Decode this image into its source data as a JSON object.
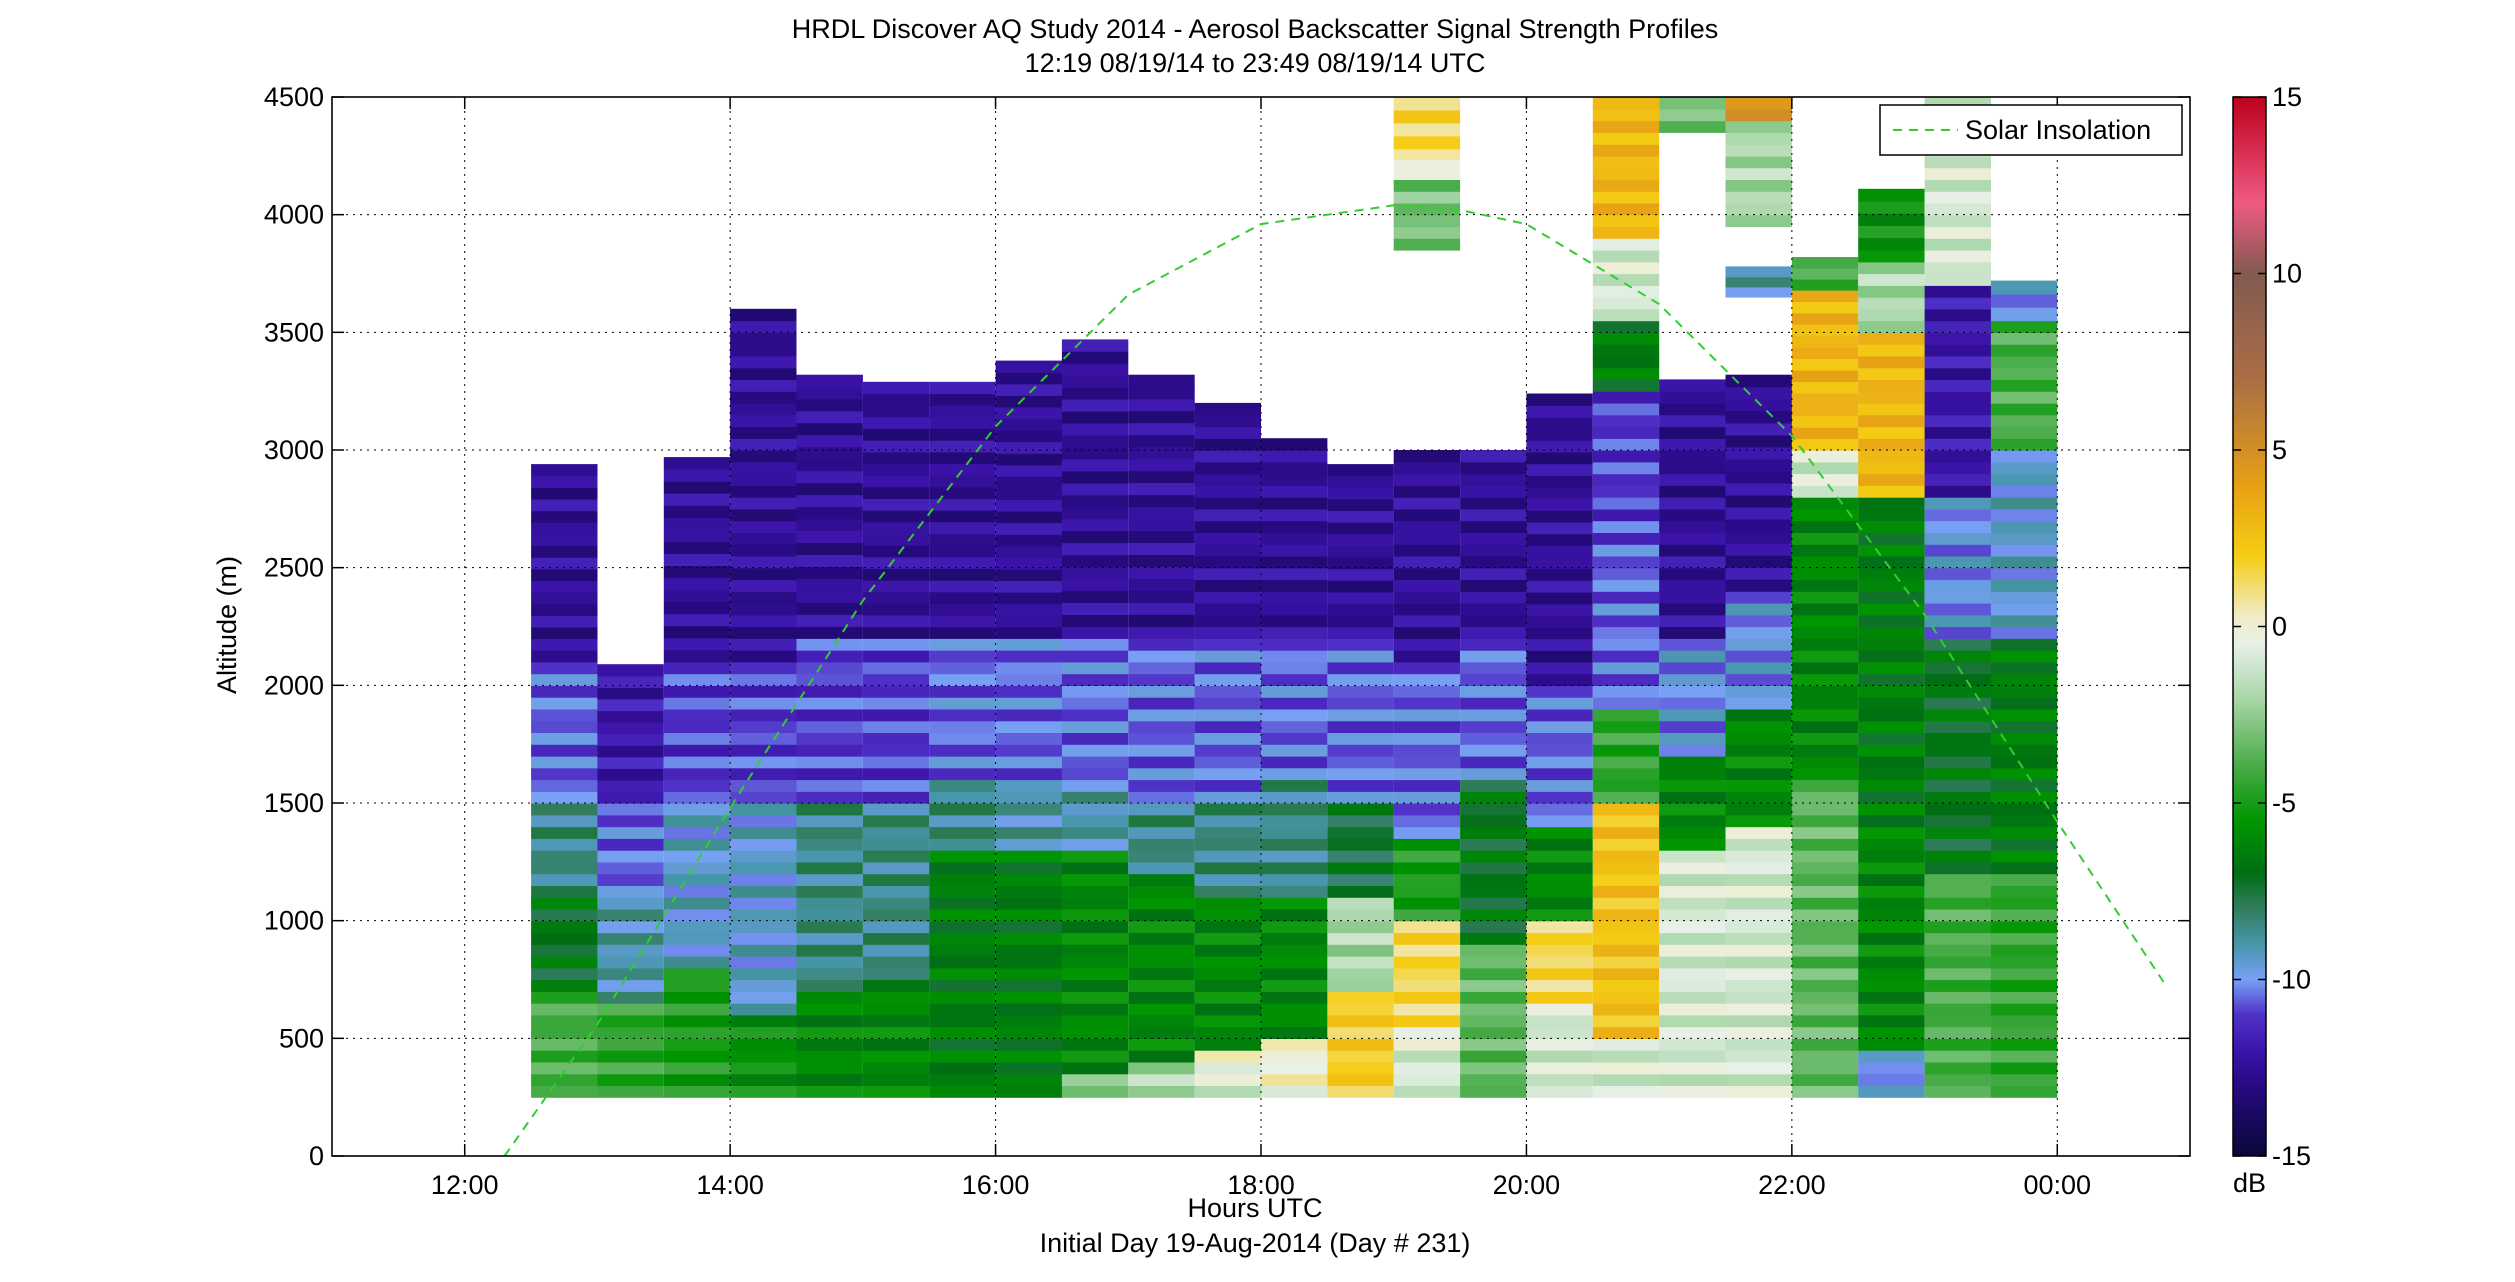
{
  "chart_data": {
    "type": "heatmap",
    "title": "HRDL Discover AQ Study 2014 - Aerosol Backscatter Signal Strength Profiles",
    "subtitle": "12:19 08/19/14 to 23:49 08/19/14  UTC",
    "xlabel": "Hours UTC",
    "xlabel2": "Initial Day 19-Aug-2014 (Day # 231)",
    "ylabel": "Altitude (m)",
    "x_unit": "hours UTC (continuous from 00:00 on 19-Aug-2014)",
    "xlim": [
      11,
      25
    ],
    "ylim": [
      0,
      4500
    ],
    "x_tick_values": [
      12,
      14,
      16,
      18,
      20,
      22,
      24
    ],
    "x_tick_labels": [
      "12:00",
      "14:00",
      "16:00",
      "18:00",
      "20:00",
      "22:00",
      "00:00"
    ],
    "y_tick_values": [
      0,
      500,
      1000,
      1500,
      2000,
      2500,
      3000,
      3500,
      4000,
      4500
    ],
    "y_tick_labels": [
      "0",
      "500",
      "1000",
      "1500",
      "2000",
      "2500",
      "3000",
      "3500",
      "4000",
      "4500"
    ],
    "grid": true,
    "legend": {
      "position": "top-right",
      "entries": [
        {
          "label": "Solar Insolation",
          "style": "dashed",
          "color": "#33cc33"
        }
      ]
    },
    "colorbar": {
      "label": "dB",
      "range": [
        -15,
        15
      ],
      "tick_values": [
        -15,
        -10,
        -5,
        0,
        5,
        10,
        15
      ],
      "tick_labels": [
        "-15",
        "-10",
        "-5",
        "0",
        "5",
        "10",
        "15"
      ]
    },
    "profile_width_hours": 0.5,
    "profiles": [
      {
        "t": 12.75,
        "segs": [
          [
            250,
            700,
            -4
          ],
          [
            700,
            1100,
            -7
          ],
          [
            1100,
            1500,
            -8.5
          ],
          [
            1500,
            2100,
            -10.5
          ],
          [
            2100,
            2940,
            -12.5
          ]
        ]
      },
      {
        "t": 13.25,
        "segs": [
          [
            250,
            650,
            -4.5
          ],
          [
            650,
            1100,
            -9
          ],
          [
            1100,
            1500,
            -10.5
          ],
          [
            1500,
            2090,
            -12
          ]
        ]
      },
      {
        "t": 13.75,
        "segs": [
          [
            250,
            800,
            -5
          ],
          [
            800,
            1500,
            -9.5
          ],
          [
            1500,
            2100,
            -11
          ],
          [
            2100,
            2970,
            -12.5
          ]
        ]
      },
      {
        "t": 14.25,
        "segs": [
          [
            250,
            600,
            -5.5
          ],
          [
            600,
            1500,
            -9.5
          ],
          [
            1500,
            2100,
            -11
          ],
          [
            2100,
            3600,
            -12.5
          ]
        ]
      },
      {
        "t": 14.75,
        "segs": [
          [
            250,
            700,
            -6
          ],
          [
            700,
            1500,
            -8.5
          ],
          [
            1500,
            2200,
            -11
          ],
          [
            2200,
            3320,
            -12.5
          ]
        ]
      },
      {
        "t": 15.25,
        "segs": [
          [
            250,
            750,
            -6
          ],
          [
            750,
            1500,
            -8.5
          ],
          [
            1500,
            2200,
            -11
          ],
          [
            2200,
            3290,
            -12.5
          ]
        ]
      },
      {
        "t": 15.75,
        "segs": [
          [
            250,
            1300,
            -6.5
          ],
          [
            1300,
            1600,
            -8.5
          ],
          [
            1600,
            2200,
            -10.5
          ],
          [
            2200,
            3290,
            -12.5
          ]
        ]
      },
      {
        "t": 16.25,
        "segs": [
          [
            250,
            1300,
            -6.5
          ],
          [
            1300,
            1600,
            -9
          ],
          [
            1600,
            2200,
            -10.5
          ],
          [
            2200,
            3380,
            -12.5
          ]
        ]
      },
      {
        "t": 16.75,
        "segs": [
          [
            250,
            350,
            -3
          ],
          [
            350,
            1300,
            -6
          ],
          [
            1300,
            1600,
            -9
          ],
          [
            1600,
            2200,
            -10.5
          ],
          [
            2200,
            3420,
            -12.5
          ],
          [
            3420,
            3470,
            -12.5
          ]
        ]
      },
      {
        "t": 17.25,
        "segs": [
          [
            250,
            400,
            -2
          ],
          [
            400,
            1200,
            -6
          ],
          [
            1200,
            1500,
            -8.5
          ],
          [
            1500,
            2200,
            -10.5
          ],
          [
            2200,
            3320,
            -12.5
          ]
        ]
      },
      {
        "t": 17.75,
        "segs": [
          [
            250,
            350,
            -1
          ],
          [
            350,
            450,
            0
          ],
          [
            450,
            1100,
            -6
          ],
          [
            1100,
            1500,
            -8.5
          ],
          [
            1500,
            2200,
            -10.5
          ],
          [
            2200,
            3200,
            -12.5
          ]
        ]
      },
      {
        "t": 18.25,
        "segs": [
          [
            250,
            500,
            0
          ],
          [
            500,
            1100,
            -6
          ],
          [
            1100,
            1600,
            -8.5
          ],
          [
            1600,
            2200,
            -10.5
          ],
          [
            2200,
            3050,
            -12.5
          ]
        ]
      },
      {
        "t": 18.75,
        "segs": [
          [
            250,
            700,
            2
          ],
          [
            700,
            1100,
            -2
          ],
          [
            1100,
            1500,
            -7.5
          ],
          [
            1500,
            2200,
            -10.5
          ],
          [
            2200,
            2940,
            -12.5
          ]
        ]
      },
      {
        "t": 19.25,
        "segs": [
          [
            250,
            450,
            -1
          ],
          [
            450,
            550,
            0
          ],
          [
            550,
            1000,
            1.5
          ],
          [
            1000,
            1350,
            -5
          ],
          [
            1350,
            2100,
            -10.5
          ],
          [
            2100,
            2950,
            -12.5
          ],
          [
            2950,
            3000,
            -12.5
          ],
          [
            3850,
            4150,
            -3
          ],
          [
            4150,
            4280,
            0
          ],
          [
            4280,
            4500,
            1.5
          ]
        ]
      },
      {
        "t": 19.75,
        "segs": [
          [
            250,
            900,
            -3.5
          ],
          [
            900,
            1600,
            -7
          ],
          [
            1600,
            2200,
            -10.5
          ],
          [
            2200,
            3000,
            -12.5
          ]
        ]
      },
      {
        "t": 20.25,
        "segs": [
          [
            250,
            650,
            -1
          ],
          [
            650,
            1000,
            1.5
          ],
          [
            1000,
            1400,
            -6
          ],
          [
            1400,
            2000,
            -10.5
          ],
          [
            2000,
            3240,
            -12.5
          ]
        ]
      },
      {
        "t": 20.75,
        "segs": [
          [
            250,
            500,
            -1
          ],
          [
            500,
            1500,
            2.5
          ],
          [
            1500,
            1900,
            -4.5
          ],
          [
            1900,
            2600,
            -10.5
          ],
          [
            2600,
            3250,
            -11
          ],
          [
            3250,
            3550,
            -6.5
          ],
          [
            3550,
            3900,
            -1
          ],
          [
            3900,
            4500,
            3
          ]
        ]
      },
      {
        "t": 21.25,
        "segs": [
          [
            250,
            600,
            -1
          ],
          [
            600,
            1300,
            -1
          ],
          [
            1300,
            1700,
            -6
          ],
          [
            1700,
            2200,
            -10
          ],
          [
            2200,
            3300,
            -12.5
          ],
          [
            4350,
            4500,
            -3
          ]
        ]
      },
      {
        "t": 21.75,
        "segs": [
          [
            250,
            1400,
            -1
          ],
          [
            1400,
            1900,
            -6
          ],
          [
            1900,
            2400,
            -10
          ],
          [
            2400,
            3320,
            -12.5
          ],
          [
            3650,
            3780,
            -9
          ],
          [
            3950,
            4400,
            -2
          ],
          [
            4400,
            4500,
            5
          ]
        ]
      },
      {
        "t": 22.25,
        "segs": [
          [
            250,
            1600,
            -3.5
          ],
          [
            1600,
            2800,
            -6
          ],
          [
            2800,
            3000,
            -1
          ],
          [
            3000,
            3680,
            3
          ],
          [
            3680,
            3820,
            -4
          ]
        ]
      },
      {
        "t": 22.75,
        "segs": [
          [
            250,
            450,
            -10
          ],
          [
            450,
            1400,
            -6
          ],
          [
            1400,
            2800,
            -6.5
          ],
          [
            2800,
            3500,
            3
          ],
          [
            3500,
            3800,
            -2
          ],
          [
            3800,
            4110,
            -5.5
          ]
        ]
      },
      {
        "t": 23.25,
        "segs": [
          [
            250,
            1200,
            -4
          ],
          [
            1200,
            2200,
            -7
          ],
          [
            2200,
            2800,
            -10
          ],
          [
            2800,
            3700,
            -12
          ],
          [
            3700,
            4500,
            -1
          ]
        ]
      },
      {
        "t": 23.75,
        "segs": [
          [
            250,
            1200,
            -4.5
          ],
          [
            1200,
            2200,
            -6.5
          ],
          [
            2200,
            3000,
            -9.5
          ],
          [
            3000,
            3550,
            -4
          ],
          [
            3550,
            3720,
            -10
          ]
        ]
      }
    ],
    "solar_insolation": {
      "x": [
        12.3,
        13.0,
        14.0,
        15.0,
        16.0,
        17.0,
        18.0,
        19.0,
        19.5,
        20.0,
        21.0,
        22.0,
        23.0,
        24.0,
        24.8
      ],
      "y": [
        0,
        560,
        1480,
        2360,
        3100,
        3660,
        3960,
        4040,
        4020,
        3960,
        3620,
        3060,
        2300,
        1420,
        740
      ]
    }
  }
}
